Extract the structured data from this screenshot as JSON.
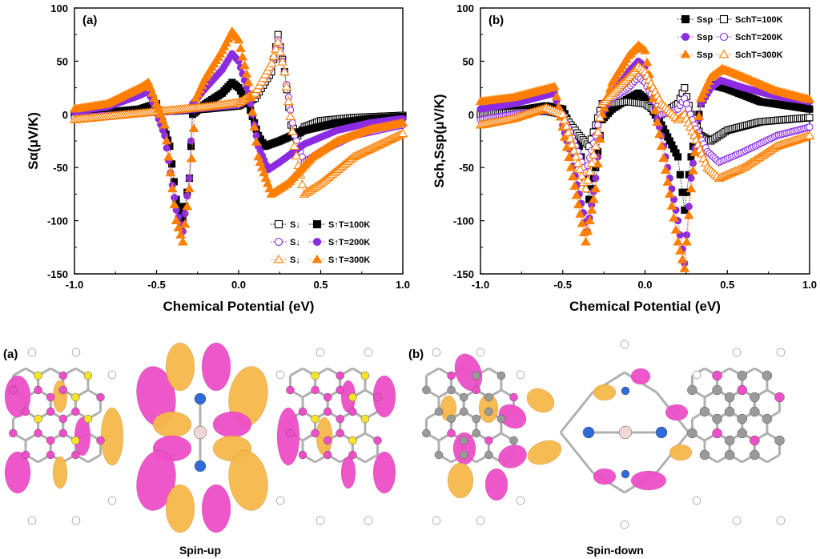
{
  "chart_data": [
    {
      "type": "scatter",
      "panel_label": "(a)",
      "xlabel": "Chemical Potential (eV)",
      "ylabel": "Sα(μV/K)",
      "xlim": [
        -1.0,
        1.0
      ],
      "ylim": [
        -150,
        100
      ],
      "xticks": [
        "-1.0",
        "-0.5",
        "0.0",
        "0.5",
        "1.0"
      ],
      "yticks": [
        "100",
        "50",
        "0",
        "-50",
        "-100",
        "-150"
      ],
      "legend_position": "bottom-right",
      "legend_rows": [
        {
          "open_label": "S↓",
          "filled_label": "S↑T=100K"
        },
        {
          "open_label": "S↓",
          "filled_label": "S↑T=200K"
        },
        {
          "open_label": "S↓",
          "filled_label": "S↑T=300K"
        }
      ],
      "series": [
        {
          "name": "S↓ T=100K",
          "marker": "open-square",
          "color": "#000000",
          "points": [
            [
              -1.0,
              0
            ],
            [
              -0.8,
              1
            ],
            [
              -0.6,
              2
            ],
            [
              -0.4,
              3
            ],
            [
              -0.2,
              5
            ],
            [
              0.0,
              8
            ],
            [
              0.1,
              15
            ],
            [
              0.2,
              40
            ],
            [
              0.24,
              75
            ],
            [
              0.28,
              40
            ],
            [
              0.32,
              -10
            ],
            [
              0.36,
              -20
            ],
            [
              0.4,
              -12
            ],
            [
              0.5,
              -6
            ],
            [
              0.7,
              -3
            ],
            [
              1.0,
              -1
            ]
          ]
        },
        {
          "name": "S↑ T=100K",
          "marker": "filled-square",
          "color": "#000000",
          "points": [
            [
              -1.0,
              1
            ],
            [
              -0.8,
              2
            ],
            [
              -0.6,
              5
            ],
            [
              -0.5,
              10
            ],
            [
              -0.42,
              -30
            ],
            [
              -0.38,
              -80
            ],
            [
              -0.34,
              -100
            ],
            [
              -0.3,
              -60
            ],
            [
              -0.28,
              0
            ],
            [
              -0.2,
              10
            ],
            [
              -0.1,
              20
            ],
            [
              -0.04,
              30
            ],
            [
              0.0,
              25
            ],
            [
              0.06,
              10
            ],
            [
              0.12,
              -20
            ],
            [
              0.16,
              -30
            ],
            [
              0.25,
              -25
            ],
            [
              0.4,
              -15
            ],
            [
              0.6,
              -8
            ],
            [
              0.8,
              -4
            ],
            [
              1.0,
              -2
            ]
          ]
        },
        {
          "name": "S↓ T=200K",
          "marker": "open-circle",
          "color": "#8b2be2",
          "points": [
            [
              -1.0,
              -3
            ],
            [
              -0.8,
              -1
            ],
            [
              -0.6,
              1
            ],
            [
              -0.4,
              3
            ],
            [
              -0.2,
              6
            ],
            [
              0.0,
              9
            ],
            [
              0.1,
              18
            ],
            [
              0.2,
              45
            ],
            [
              0.24,
              70
            ],
            [
              0.28,
              40
            ],
            [
              0.34,
              -20
            ],
            [
              0.4,
              -45
            ],
            [
              0.5,
              -35
            ],
            [
              0.7,
              -20
            ],
            [
              1.0,
              -10
            ]
          ]
        },
        {
          "name": "S↑ T=200K",
          "marker": "filled-circle",
          "color": "#8b2be2",
          "points": [
            [
              -1.0,
              3
            ],
            [
              -0.8,
              7
            ],
            [
              -0.6,
              18
            ],
            [
              -0.55,
              22
            ],
            [
              -0.45,
              -20
            ],
            [
              -0.38,
              -90
            ],
            [
              -0.34,
              -110
            ],
            [
              -0.3,
              -60
            ],
            [
              -0.28,
              10
            ],
            [
              -0.2,
              25
            ],
            [
              -0.1,
              42
            ],
            [
              -0.04,
              57
            ],
            [
              0.0,
              50
            ],
            [
              0.06,
              20
            ],
            [
              0.12,
              -30
            ],
            [
              0.18,
              -52
            ],
            [
              0.25,
              -45
            ],
            [
              0.4,
              -28
            ],
            [
              0.6,
              -15
            ],
            [
              0.8,
              -8
            ],
            [
              1.0,
              -4
            ]
          ]
        },
        {
          "name": "S↓ T=300K",
          "marker": "open-triangle",
          "color": "#ff7f00",
          "points": [
            [
              -1.0,
              -5
            ],
            [
              -0.8,
              -2
            ],
            [
              -0.6,
              1
            ],
            [
              -0.4,
              4
            ],
            [
              -0.2,
              7
            ],
            [
              0.0,
              11
            ],
            [
              0.1,
              20
            ],
            [
              0.2,
              48
            ],
            [
              0.24,
              68
            ],
            [
              0.28,
              40
            ],
            [
              0.34,
              -30
            ],
            [
              0.4,
              -75
            ],
            [
              0.5,
              -65
            ],
            [
              0.7,
              -40
            ],
            [
              1.0,
              -18
            ]
          ]
        },
        {
          "name": "S↑ T=300K",
          "marker": "filled-triangle",
          "color": "#ff7f00",
          "points": [
            [
              -1.0,
              5
            ],
            [
              -0.8,
              10
            ],
            [
              -0.6,
              25
            ],
            [
              -0.55,
              30
            ],
            [
              -0.45,
              -10
            ],
            [
              -0.38,
              -100
            ],
            [
              -0.34,
              -120
            ],
            [
              -0.3,
              -70
            ],
            [
              -0.26,
              15
            ],
            [
              -0.2,
              35
            ],
            [
              -0.1,
              60
            ],
            [
              -0.04,
              78
            ],
            [
              0.0,
              70
            ],
            [
              0.06,
              30
            ],
            [
              0.12,
              -40
            ],
            [
              0.2,
              -75
            ],
            [
              0.3,
              -65
            ],
            [
              0.45,
              -40
            ],
            [
              0.6,
              -25
            ],
            [
              0.8,
              -14
            ],
            [
              1.0,
              -8
            ]
          ]
        }
      ]
    },
    {
      "type": "scatter",
      "panel_label": "(b)",
      "xlabel": "Chemical Potential (eV)",
      "ylabel": "Sch,Ssp(μV/K)",
      "xlim": [
        -1.0,
        1.0
      ],
      "ylim": [
        -150,
        100
      ],
      "xticks": [
        "-1.0",
        "-0.5",
        "0.0",
        "0.5",
        "1.0"
      ],
      "yticks": [
        "100",
        "50",
        "0",
        "-50",
        "-100",
        "-150"
      ],
      "legend_position": "top-right",
      "legend_rows": [
        {
          "filled_label": "Ssp",
          "open_label": "SchT=100K"
        },
        {
          "filled_label": "Ssp",
          "open_label": "SchT=200K"
        },
        {
          "filled_label": "Ssp",
          "open_label": "SchT=300K"
        }
      ],
      "series": [
        {
          "name": "Ssp T=100K",
          "marker": "filled-square",
          "color": "#000000",
          "points": [
            [
              -1.0,
              0
            ],
            [
              -0.8,
              3
            ],
            [
              -0.6,
              8
            ],
            [
              -0.5,
              5
            ],
            [
              -0.4,
              -30
            ],
            [
              -0.34,
              -80
            ],
            [
              -0.3,
              -50
            ],
            [
              -0.26,
              -5
            ],
            [
              -0.2,
              5
            ],
            [
              -0.1,
              15
            ],
            [
              -0.04,
              20
            ],
            [
              0.0,
              15
            ],
            [
              0.1,
              -10
            ],
            [
              0.2,
              -40
            ],
            [
              0.24,
              -90
            ],
            [
              0.28,
              -40
            ],
            [
              0.34,
              10
            ],
            [
              0.4,
              28
            ],
            [
              0.5,
              24
            ],
            [
              0.7,
              12
            ],
            [
              1.0,
              5
            ]
          ]
        },
        {
          "name": "Sch T=100K",
          "marker": "open-square",
          "color": "#000000",
          "points": [
            [
              -1.0,
              0
            ],
            [
              -0.8,
              2
            ],
            [
              -0.6,
              3
            ],
            [
              -0.5,
              0
            ],
            [
              -0.4,
              -20
            ],
            [
              -0.34,
              -30
            ],
            [
              -0.3,
              -10
            ],
            [
              -0.26,
              10
            ],
            [
              -0.2,
              10
            ],
            [
              -0.1,
              12
            ],
            [
              0.0,
              10
            ],
            [
              0.1,
              0
            ],
            [
              0.2,
              10
            ],
            [
              0.24,
              25
            ],
            [
              0.28,
              0
            ],
            [
              0.34,
              -20
            ],
            [
              0.4,
              -25
            ],
            [
              0.5,
              -15
            ],
            [
              0.7,
              -7
            ],
            [
              1.0,
              -3
            ]
          ]
        },
        {
          "name": "Ssp T=200K",
          "marker": "filled-circle",
          "color": "#8b2be2",
          "points": [
            [
              -1.0,
              5
            ],
            [
              -0.8,
              10
            ],
            [
              -0.6,
              18
            ],
            [
              -0.55,
              20
            ],
            [
              -0.45,
              -40
            ],
            [
              -0.35,
              -110
            ],
            [
              -0.3,
              -60
            ],
            [
              -0.26,
              0
            ],
            [
              -0.2,
              20
            ],
            [
              -0.1,
              40
            ],
            [
              -0.04,
              50
            ],
            [
              0.0,
              45
            ],
            [
              0.1,
              -20
            ],
            [
              0.2,
              -100
            ],
            [
              0.24,
              -140
            ],
            [
              0.28,
              -60
            ],
            [
              0.34,
              10
            ],
            [
              0.4,
              25
            ],
            [
              0.46,
              32
            ],
            [
              0.6,
              25
            ],
            [
              0.8,
              17
            ],
            [
              1.0,
              12
            ]
          ]
        },
        {
          "name": "Sch T=200K",
          "marker": "open-circle",
          "color": "#8b2be2",
          "points": [
            [
              -1.0,
              -5
            ],
            [
              -0.8,
              0
            ],
            [
              -0.6,
              4
            ],
            [
              -0.5,
              0
            ],
            [
              -0.42,
              -30
            ],
            [
              -0.36,
              -55
            ],
            [
              -0.3,
              -20
            ],
            [
              -0.26,
              10
            ],
            [
              -0.2,
              15
            ],
            [
              -0.1,
              25
            ],
            [
              -0.04,
              35
            ],
            [
              0.0,
              30
            ],
            [
              0.1,
              0
            ],
            [
              0.2,
              5
            ],
            [
              0.24,
              15
            ],
            [
              0.3,
              -10
            ],
            [
              0.38,
              -35
            ],
            [
              0.45,
              -45
            ],
            [
              0.6,
              -35
            ],
            [
              0.8,
              -20
            ],
            [
              1.0,
              -12
            ]
          ]
        },
        {
          "name": "Ssp T=300K",
          "marker": "filled-triangle",
          "color": "#ff7f00",
          "points": [
            [
              -1.0,
              12
            ],
            [
              -0.8,
              16
            ],
            [
              -0.6,
              24
            ],
            [
              -0.55,
              26
            ],
            [
              -0.45,
              -50
            ],
            [
              -0.36,
              -120
            ],
            [
              -0.3,
              -70
            ],
            [
              -0.26,
              0
            ],
            [
              -0.2,
              30
            ],
            [
              -0.1,
              55
            ],
            [
              -0.04,
              65
            ],
            [
              0.0,
              60
            ],
            [
              0.1,
              -30
            ],
            [
              0.2,
              -120
            ],
            [
              0.24,
              -145
            ],
            [
              0.28,
              -70
            ],
            [
              0.34,
              15
            ],
            [
              0.4,
              35
            ],
            [
              0.47,
              43
            ],
            [
              0.6,
              35
            ],
            [
              0.8,
              22
            ],
            [
              1.0,
              14
            ]
          ]
        },
        {
          "name": "Sch T=300K",
          "marker": "open-triangle",
          "color": "#ff7f00",
          "points": [
            [
              -1.0,
              -10
            ],
            [
              -0.8,
              -4
            ],
            [
              -0.6,
              6
            ],
            [
              -0.5,
              0
            ],
            [
              -0.42,
              -40
            ],
            [
              -0.36,
              -70
            ],
            [
              -0.3,
              -30
            ],
            [
              -0.26,
              10
            ],
            [
              -0.2,
              20
            ],
            [
              -0.1,
              35
            ],
            [
              -0.04,
              45
            ],
            [
              0.0,
              40
            ],
            [
              0.1,
              10
            ],
            [
              0.2,
              -5
            ],
            [
              0.24,
              0
            ],
            [
              0.3,
              -20
            ],
            [
              0.38,
              -50
            ],
            [
              0.45,
              -60
            ],
            [
              0.6,
              -50
            ],
            [
              0.8,
              -30
            ],
            [
              1.0,
              -20
            ]
          ]
        }
      ]
    }
  ],
  "molecule_panels": [
    {
      "label": "(a)",
      "caption": "Spin-up"
    },
    {
      "label": "(b)",
      "caption": "Spin-down"
    }
  ],
  "colors": {
    "black": "#000000",
    "purple": "#8b2be2",
    "orange": "#ff7f00",
    "orbital_pink": "#ee4fc8",
    "orbital_gold": "#f7b84a",
    "atom_grey": "#9a9a9a",
    "atom_yellow": "#f4e52a",
    "atom_blue": "#2f6bd8",
    "atom_center": "#f1d6d6"
  }
}
